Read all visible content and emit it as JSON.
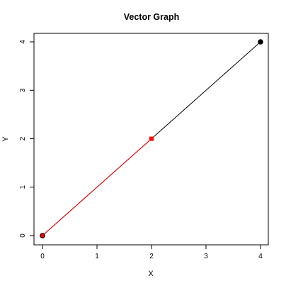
{
  "chart_data": {
    "type": "line",
    "title": "Vector Graph",
    "xlabel": "X",
    "ylabel": "Y",
    "xlim": [
      0,
      4
    ],
    "ylim": [
      0,
      4
    ],
    "grid": false,
    "x_ticks": [
      0,
      1,
      2,
      3,
      4
    ],
    "y_ticks": [
      0,
      1,
      2,
      3,
      4
    ],
    "series": [
      {
        "color": "#000000",
        "x": [
          0,
          4
        ],
        "y": [
          0,
          4
        ],
        "marker": "circle"
      },
      {
        "color": "#ff0000",
        "x": [
          0,
          2
        ],
        "y": [
          0,
          2
        ],
        "marker": "square"
      }
    ],
    "points": [
      {
        "x": 0,
        "y": 0,
        "shape": "circle",
        "fill": "#ff0000",
        "stroke": "#000000"
      },
      {
        "x": 2,
        "y": 2,
        "shape": "square",
        "fill": "#ff0000",
        "stroke": "#ff0000"
      },
      {
        "x": 4,
        "y": 4,
        "shape": "circle",
        "fill": "#000000",
        "stroke": "#000000"
      }
    ]
  }
}
